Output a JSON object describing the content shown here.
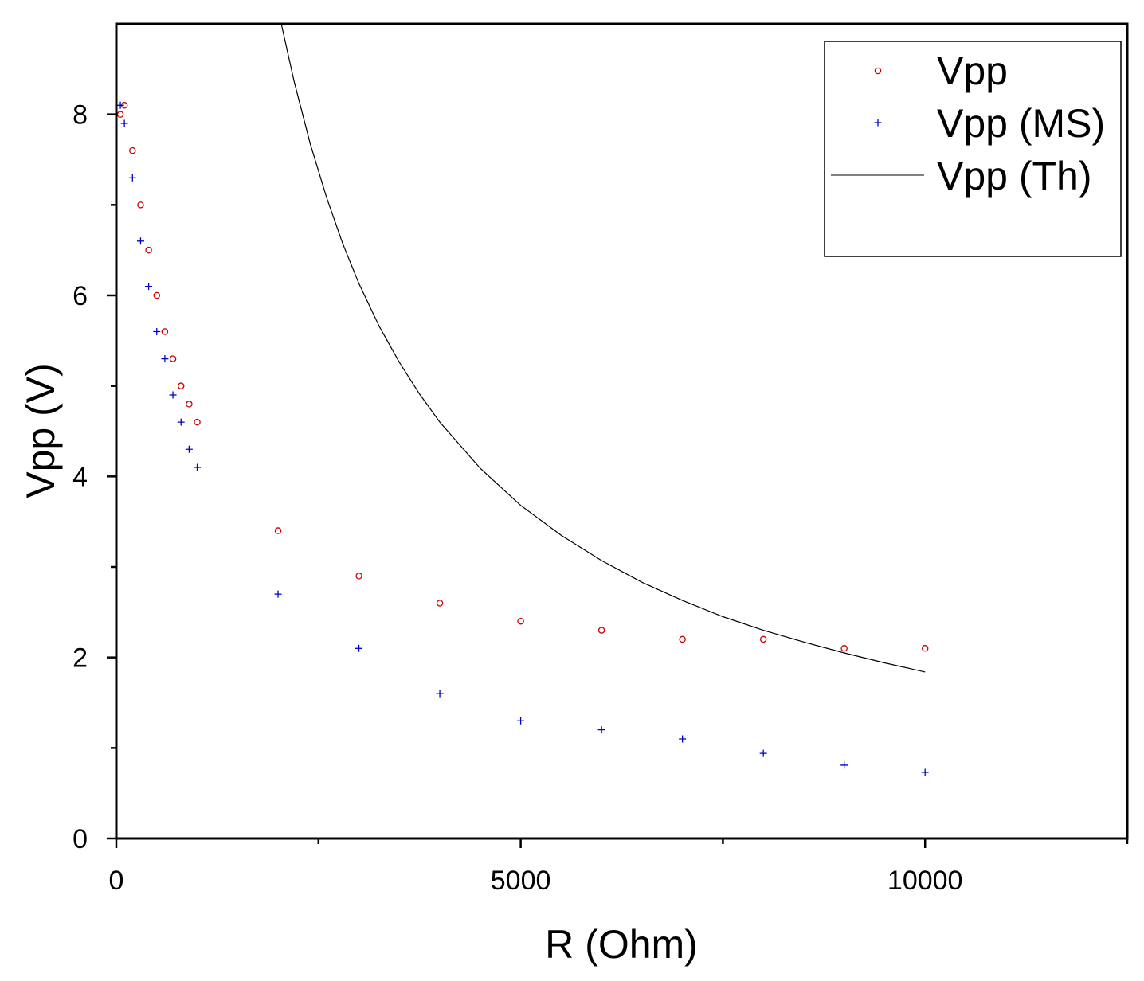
{
  "chart_data": {
    "type": "scatter",
    "title": "",
    "xlabel": "R (Ohm)",
    "ylabel": "Vpp (V)",
    "xlim": [
      0,
      12500
    ],
    "ylim": [
      0,
      9
    ],
    "x_ticks": [
      0,
      5000,
      10000
    ],
    "x_tick_labels": [
      "0",
      "5000",
      "10000"
    ],
    "x_minor_ticks": [
      2500,
      7500,
      12500
    ],
    "y_ticks": [
      0,
      2,
      4,
      6,
      8
    ],
    "y_tick_labels": [
      "0",
      "2",
      "4",
      "6",
      "8"
    ],
    "y_minor_ticks": [
      1,
      3,
      5,
      7
    ],
    "grid": false,
    "legend_position": "top-right",
    "series": [
      {
        "name": "Vpp",
        "kind": "scatter",
        "marker": "circle",
        "color": "#cc0000",
        "x": [
          50,
          100,
          200,
          300,
          400,
          500,
          600,
          700,
          800,
          900,
          1000,
          2000,
          3000,
          4000,
          5000,
          6000,
          7000,
          8000,
          9000,
          10000
        ],
        "y": [
          8.0,
          8.1,
          7.6,
          7.0,
          6.5,
          6.0,
          5.6,
          5.3,
          5.0,
          4.8,
          4.6,
          3.4,
          2.9,
          2.6,
          2.4,
          2.3,
          2.2,
          2.2,
          2.1,
          2.1
        ]
      },
      {
        "name": "Vpp (MS)",
        "kind": "scatter",
        "marker": "plus",
        "color": "#0000cc",
        "x": [
          50,
          100,
          200,
          300,
          400,
          500,
          600,
          700,
          800,
          900,
          1000,
          2000,
          3000,
          4000,
          5000,
          6000,
          7000,
          8000,
          9000,
          10000
        ],
        "y": [
          8.1,
          7.9,
          7.3,
          6.6,
          6.1,
          5.6,
          5.3,
          4.9,
          4.6,
          4.3,
          4.1,
          2.7,
          2.1,
          1.6,
          1.3,
          1.2,
          1.1,
          0.94,
          0.81,
          0.73
        ]
      },
      {
        "name": "Vpp (Th)",
        "kind": "line",
        "color": "#000000",
        "x": [
          2040,
          2200,
          2400,
          2600,
          2800,
          3000,
          3250,
          3500,
          3750,
          4000,
          4500,
          5000,
          5500,
          6000,
          6500,
          7000,
          7500,
          8000,
          8500,
          9000,
          9500,
          10000
        ],
        "y": [
          9.0,
          8.36,
          7.67,
          7.08,
          6.57,
          6.13,
          5.66,
          5.26,
          4.91,
          4.6,
          4.09,
          3.68,
          3.35,
          3.07,
          2.83,
          2.63,
          2.45,
          2.3,
          2.17,
          2.05,
          1.94,
          1.84
        ]
      }
    ]
  }
}
